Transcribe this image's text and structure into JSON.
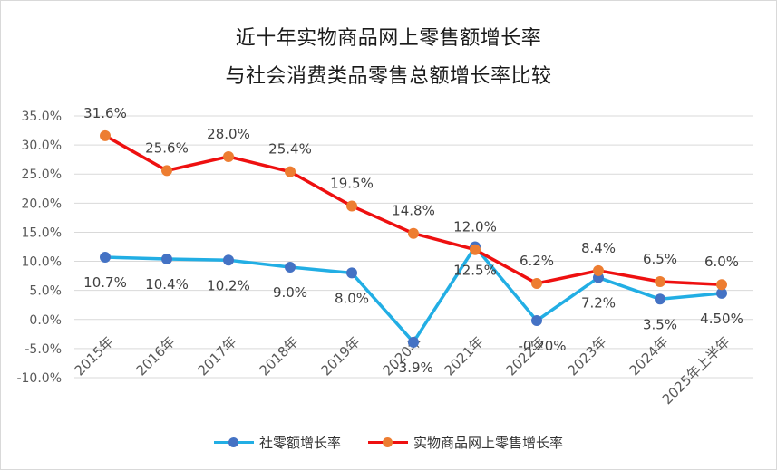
{
  "chart_data": {
    "type": "line",
    "title": "近十年实物商品网上零售额增长率",
    "subtitle": "与社会消费类品零售总额增长率比较",
    "categories": [
      "2015年",
      "2016年",
      "2017年",
      "2018年",
      "2019年",
      "2020年",
      "2021年",
      "2022年",
      "2023年",
      "2024年",
      "2025年上半年"
    ],
    "ylim": [
      -10,
      35
    ],
    "yticks": [
      "35.0%",
      "30.0%",
      "25.0%",
      "20.0%",
      "15.0%",
      "10.0%",
      "5.0%",
      "0.0%",
      "-5.0%",
      "-10.0%"
    ],
    "ytick_values": [
      35,
      30,
      25,
      20,
      15,
      10,
      5,
      0,
      -5,
      -10
    ],
    "grid": true,
    "legend_position": "bottom",
    "series": [
      {
        "name": "社零额增长率",
        "color": "#22aee4",
        "marker_color": "#4472c4",
        "values": [
          10.7,
          10.4,
          10.2,
          9.0,
          8.0,
          -3.9,
          12.5,
          -0.2,
          7.2,
          3.5,
          4.5
        ],
        "labels": [
          "10.7%",
          "10.4%",
          "10.2%",
          "9.0%",
          "8.0%",
          "-3.9%",
          "12.5%",
          "-0.20%",
          "7.2%",
          "3.5%",
          "4.50%"
        ]
      },
      {
        "name": "实物商品网上零售增长率",
        "color": "#ee1010",
        "marker_color": "#ed7d31",
        "values": [
          31.6,
          25.6,
          28.0,
          25.4,
          19.5,
          14.8,
          12.0,
          6.2,
          8.4,
          6.5,
          6.0
        ],
        "labels": [
          "31.6%",
          "25.6%",
          "28.0%",
          "25.4%",
          "19.5%",
          "14.8%",
          "12.0%",
          "6.2%",
          "8.4%",
          "6.5%",
          "6.0%"
        ]
      }
    ]
  }
}
